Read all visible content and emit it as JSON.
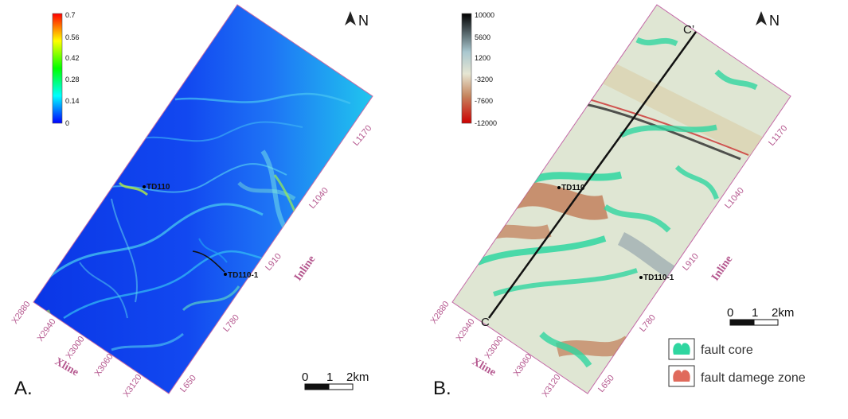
{
  "panels": [
    {
      "letter": "A.",
      "north": "N",
      "colorbar": {
        "ticks": [
          "0.7",
          "0.56",
          "0.42",
          "0.28",
          "0.14",
          "0"
        ],
        "colors": [
          "#ff0000",
          "#ffff00",
          "#00ff00",
          "#00ffff",
          "#0000ff"
        ]
      },
      "wells": [
        "TD110",
        "TD110-1"
      ],
      "inlines": [
        "L1170",
        "L1040",
        "L910",
        "L780",
        "L650"
      ],
      "xlines": [
        "X2880",
        "X2940",
        "X3000",
        "X3060",
        "X3120"
      ],
      "inline_axis": "Inline",
      "xline_axis": "Xline",
      "scale": {
        "ticks": [
          "0",
          "1",
          "2km"
        ]
      }
    },
    {
      "letter": "B.",
      "north": "N",
      "colorbar": {
        "ticks": [
          "10000",
          "5600",
          "1200",
          "-3200",
          "-7600",
          "-12000"
        ],
        "colors": [
          "#000000",
          "#a9c7cf",
          "#e6e6d3",
          "#c6865f",
          "#cc0000"
        ]
      },
      "wells": [
        "TD110",
        "TD110-1"
      ],
      "section": {
        "start": "C",
        "end": "C’"
      },
      "inlines": [
        "L1170",
        "L1040",
        "L910",
        "L780",
        "L650"
      ],
      "xlines": [
        "X2880",
        "X2940",
        "X3000",
        "X3060",
        "X3120"
      ],
      "inline_axis": "Inline",
      "xline_axis": "Xline",
      "scale": {
        "ticks": [
          "0",
          "1",
          "2km"
        ]
      }
    }
  ],
  "legend": [
    {
      "label": "fault core",
      "color": "#2fd6a0"
    },
    {
      "label": "fault damege zone",
      "color": "#e06a5c"
    }
  ]
}
